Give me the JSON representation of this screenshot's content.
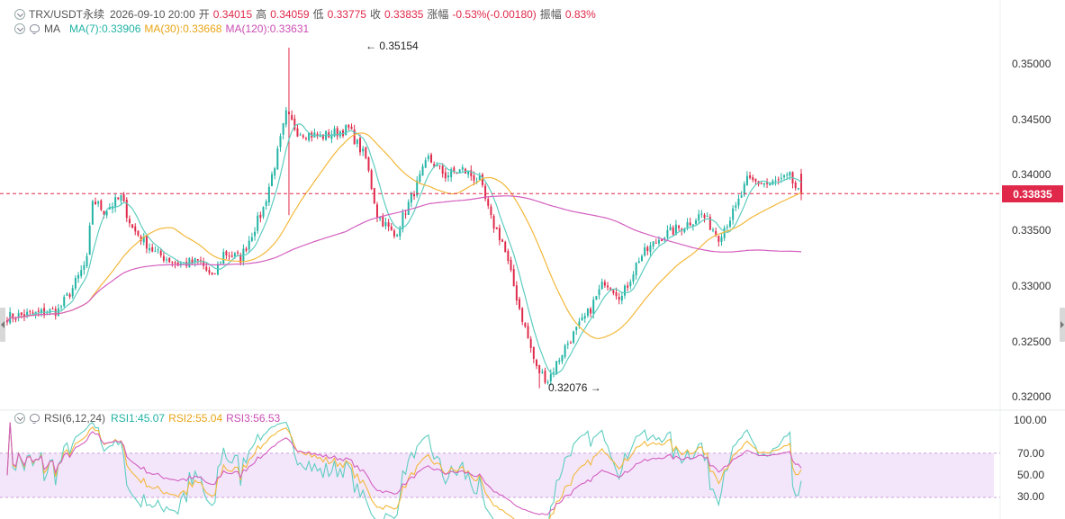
{
  "header": {
    "symbol": "TRX/USDT永续",
    "datetime": "2026-09-10 20:00",
    "open_label": "开",
    "open": "0.34015",
    "high_label": "高",
    "high": "0.34059",
    "low_label": "低",
    "low": "0.33775",
    "close_label": "收",
    "close": "0.33835",
    "change_label": "涨幅",
    "change": "-0.53%(-0.00180)",
    "amp_label": "振幅",
    "amp": "0.83%"
  },
  "ma_legend": {
    "title": "MA",
    "ma7": "MA(7):0.33906",
    "ma30": "MA(30):0.33668",
    "ma120": "MA(120):0.33631"
  },
  "rsi_legend": {
    "title": "RSI(6,12,24)",
    "rsi1": "RSI1:45.07",
    "rsi2": "RSI2:55.04",
    "rsi3": "RSI3:56.53"
  },
  "price_annotations": {
    "high_marker": "← 0.35154",
    "low_marker": "0.32076 →"
  },
  "current_price_tag": "0.33835",
  "colors": {
    "up": "#21b3a4",
    "down": "#e0294a",
    "ma7": "#5ecdc0",
    "ma30": "#f3b83b",
    "ma120": "#d45fbf",
    "rsi1": "#5ecdc0",
    "rsi2": "#f3b83b",
    "rsi3": "#d45fbf",
    "rsi_band": "#f3e6fb"
  },
  "chart_data": [
    {
      "type": "candlestick",
      "title": "",
      "y_axis_ticks": [
        "0.35000",
        "0.34500",
        "0.34000",
        "0.33500",
        "0.33000",
        "0.32500",
        "0.32000"
      ],
      "ylim": [
        0.3194,
        0.3545
      ],
      "grid": false,
      "current_price": 0.33835,
      "period_high": 0.35154,
      "period_low": 0.32076,
      "close_path_anchors": [
        [
          0,
          0.3272
        ],
        [
          10,
          0.3275
        ],
        [
          18,
          0.3278
        ],
        [
          23,
          0.3298
        ],
        [
          28,
          0.3323
        ],
        [
          30,
          0.3378
        ],
        [
          34,
          0.3368
        ],
        [
          40,
          0.338
        ],
        [
          44,
          0.3352
        ],
        [
          52,
          0.333
        ],
        [
          60,
          0.332
        ],
        [
          68,
          0.3322
        ],
        [
          72,
          0.3306
        ],
        [
          76,
          0.333
        ],
        [
          82,
          0.3325
        ],
        [
          90,
          0.337
        ],
        [
          95,
          0.342
        ],
        [
          98,
          0.3455
        ],
        [
          102,
          0.344
        ],
        [
          110,
          0.3435
        ],
        [
          120,
          0.3442
        ],
        [
          126,
          0.3415
        ],
        [
          130,
          0.3365
        ],
        [
          136,
          0.3345
        ],
        [
          142,
          0.338
        ],
        [
          148,
          0.3415
        ],
        [
          154,
          0.34
        ],
        [
          160,
          0.3405
        ],
        [
          166,
          0.3395
        ],
        [
          170,
          0.336
        ],
        [
          174,
          0.334
        ],
        [
          180,
          0.328
        ],
        [
          186,
          0.3225
        ],
        [
          190,
          0.3215
        ],
        [
          196,
          0.3245
        ],
        [
          204,
          0.3275
        ],
        [
          210,
          0.3305
        ],
        [
          216,
          0.329
        ],
        [
          222,
          0.3325
        ],
        [
          230,
          0.3345
        ],
        [
          238,
          0.3355
        ],
        [
          244,
          0.3365
        ],
        [
          250,
          0.3345
        ],
        [
          256,
          0.337
        ],
        [
          260,
          0.3395
        ],
        [
          268,
          0.3392
        ],
        [
          275,
          0.3398
        ],
        [
          278,
          0.3384
        ]
      ],
      "series": [
        {
          "name": "MA(7)",
          "last": 0.33906
        },
        {
          "name": "MA(30)",
          "last": 0.33668
        },
        {
          "name": "MA(120)",
          "last": 0.33631
        }
      ]
    },
    {
      "type": "line",
      "title": "RSI(6,12,24)",
      "y_axis_ticks": [
        "100.00",
        "70.00",
        "50.00",
        "30.00"
      ],
      "ylim": [
        0,
        100
      ],
      "band": [
        30,
        70
      ],
      "series": [
        {
          "name": "RSI1",
          "last": 45.07
        },
        {
          "name": "RSI2",
          "last": 55.04
        },
        {
          "name": "RSI3",
          "last": 56.53
        }
      ]
    }
  ]
}
